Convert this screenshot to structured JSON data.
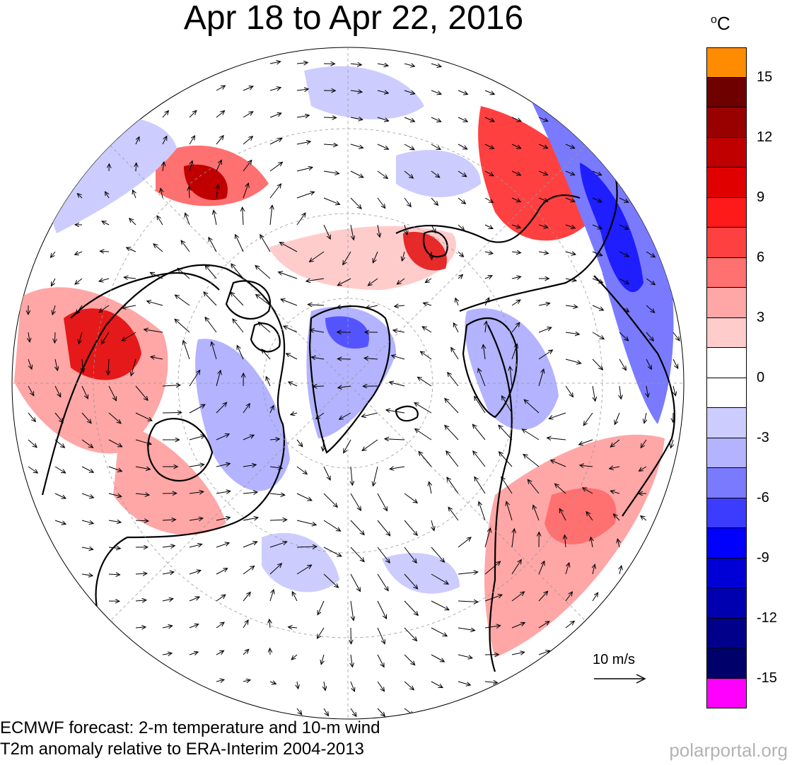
{
  "header": {
    "title": "Apr 18 to Apr 22, 2016"
  },
  "legend": {
    "unit": "C",
    "colors": [
      "#ff8c00",
      "#6e0000",
      "#990000",
      "#c00000",
      "#e00000",
      "#ff1a1a",
      "#ff4040",
      "#ff7070",
      "#ffa6a6",
      "#ffcccc",
      "#ffffff",
      "#ffffff",
      "#ccccff",
      "#b3b3ff",
      "#7a7aff",
      "#3c3cff",
      "#0000ff",
      "#0000d6",
      "#0000b0",
      "#00008a",
      "#00006a",
      "#ff00ff"
    ],
    "ticks": [
      "15",
      "12",
      "9",
      "6",
      "3",
      "0",
      "-3",
      "-6",
      "-9",
      "-12",
      "-15"
    ]
  },
  "scale": {
    "label": "10 m/s"
  },
  "footer": {
    "line1": "ECMWF forecast: 2-m temperature and 10-m wind",
    "line2": "T2m anomaly relative to ERA-Interim 2004-2013",
    "brand": "polarportal.org"
  },
  "palette": {
    "warm_light": "#ffcccc",
    "warm_mid": "#ff7070",
    "warm_strong": "#e00000",
    "cold_light": "#ccccff",
    "cold_mid": "#7a7aff",
    "cold_strong": "#0000ff"
  }
}
